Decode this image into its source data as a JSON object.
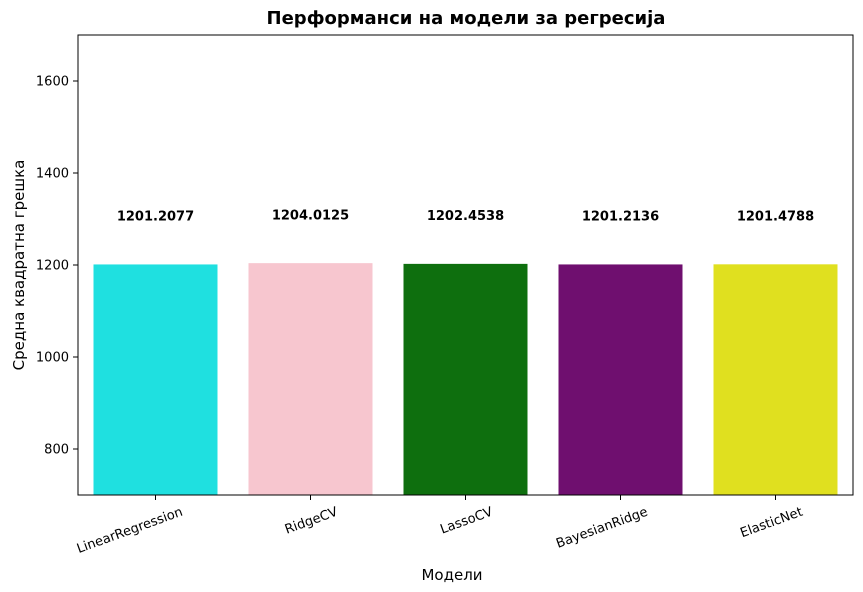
{
  "chart_data": {
    "type": "bar",
    "title": "Перформанси на модели за регресија",
    "xlabel": "Модели",
    "ylabel": "Средна квадратна грешка",
    "categories": [
      "LinearRegression",
      "RidgeCV",
      "LassoCV",
      "BayesianRidge",
      "ElasticNet"
    ],
    "values": [
      1201.2077,
      1204.0125,
      1202.4538,
      1201.2136,
      1201.4788
    ],
    "data_labels": [
      "1201.2077",
      "1204.0125",
      "1202.4538",
      "1201.2136",
      "1201.4788"
    ],
    "colors": [
      "#1fe0e0",
      "#f7c6cf",
      "#0e6f0e",
      "#6f0f6f",
      "#e0e01f"
    ],
    "ylim": [
      700,
      1700
    ],
    "yticks": [
      800,
      1000,
      1200,
      1400,
      1600
    ],
    "grid": false,
    "legend": "none"
  }
}
